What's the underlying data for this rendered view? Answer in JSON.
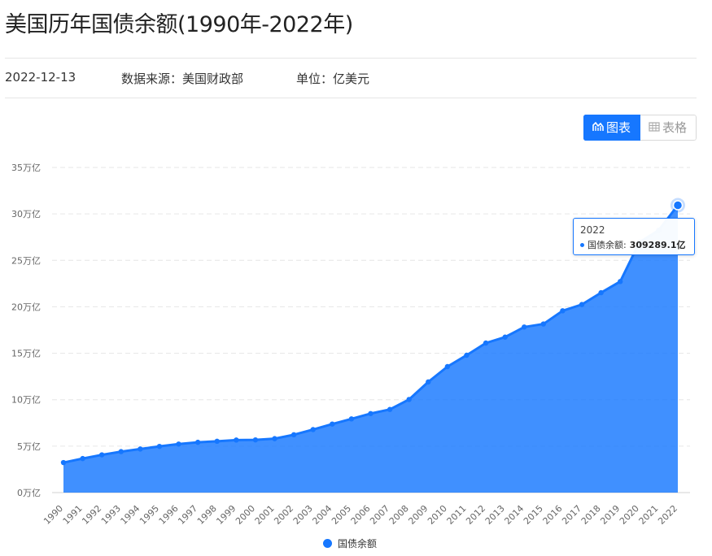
{
  "page": {
    "title": "美国历年国债余额(1990年-2022年)",
    "date": "2022-12-13",
    "source": "数据来源：美国财政部",
    "unit": "单位：亿美元"
  },
  "toggle": {
    "chart_label": "图表",
    "table_label": "表格",
    "active": "chart",
    "active_color": "#1677ff"
  },
  "tooltip": {
    "year": "2022",
    "series_label": "国债余额:",
    "value_text": "309289.1亿"
  },
  "legend": {
    "label": "国债余额",
    "color": "#1677ff"
  },
  "chart_data": {
    "type": "area",
    "title": "",
    "xlabel": "",
    "ylabel": "",
    "x": [
      "1990",
      "1991",
      "1992",
      "1993",
      "1994",
      "1995",
      "1996",
      "1997",
      "1998",
      "1999",
      "2000",
      "2001",
      "2002",
      "2003",
      "2004",
      "2005",
      "2006",
      "2007",
      "2008",
      "2009",
      "2010",
      "2011",
      "2012",
      "2013",
      "2014",
      "2015",
      "2016",
      "2017",
      "2018",
      "2019",
      "2020",
      "2021",
      "2022"
    ],
    "series": [
      {
        "name": "国债余额",
        "color": "#1677ff",
        "values": [
          32330,
          36650,
          40650,
          44110,
          46930,
          49740,
          52250,
          54130,
          55260,
          56560,
          56740,
          58070,
          62280,
          67830,
          73790,
          79330,
          85070,
          89510,
          100250,
          119100,
          135620,
          147900,
          161000,
          167380,
          178240,
          181510,
          195730,
          202450,
          215160,
          227190,
          269450,
          282290,
          309289.1
        ]
      }
    ],
    "ylim": [
      0,
      350000
    ],
    "yticks": [
      0,
      50000,
      100000,
      150000,
      200000,
      250000,
      300000,
      350000
    ],
    "ytick_labels": [
      "0万亿",
      "5万亿",
      "10万亿",
      "15万亿",
      "20万亿",
      "25万亿",
      "30万亿",
      "35万亿"
    ],
    "grid": true,
    "legend_position": "bottom-center",
    "highlighted_point": "2022"
  }
}
